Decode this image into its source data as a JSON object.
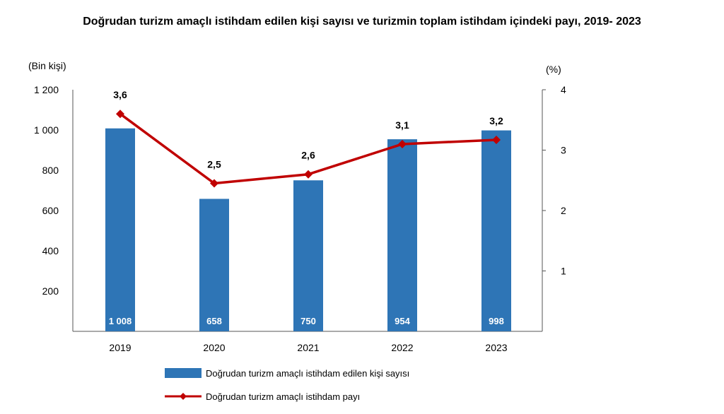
{
  "chart_data": {
    "type": "bar",
    "title": "Doğrudan turizm amaçlı istihdam edilen kişi sayısı ve turizmin toplam istihdam içindeki payı, 2019- 2023",
    "categories": [
      "2019",
      "2020",
      "2021",
      "2022",
      "2023"
    ],
    "y_left": {
      "label": "(Bin kişi)",
      "lim": [
        0,
        1200
      ],
      "ticks": [
        200,
        400,
        600,
        800,
        1000,
        1200
      ],
      "tick_labels": [
        "200",
        "400",
        "600",
        "800",
        "1 000",
        "1 200"
      ]
    },
    "y_right": {
      "label": "(%)",
      "lim": [
        0,
        4
      ],
      "ticks": [
        1,
        2,
        3,
        4
      ],
      "tick_labels": [
        "1",
        "2",
        "3",
        "4"
      ]
    },
    "series": [
      {
        "name": "Doğrudan turizm amaçlı istihdam edilen kişi sayısı",
        "type": "bar",
        "axis": "left",
        "color": "#2e75b6",
        "values": [
          1008,
          658,
          750,
          954,
          998
        ],
        "labels": [
          "1 008",
          "658",
          "750",
          "954",
          "998"
        ]
      },
      {
        "name": "Doğrudan turizm amaçlı istihdam payı",
        "type": "line",
        "axis": "right",
        "color": "#c00000",
        "values": [
          3.6,
          2.45,
          2.6,
          3.1,
          3.17
        ],
        "labels": [
          "3,6",
          "2,5",
          "2,6",
          "3,1",
          "3,2"
        ]
      }
    ],
    "grid": false,
    "legend_position": "bottom"
  }
}
